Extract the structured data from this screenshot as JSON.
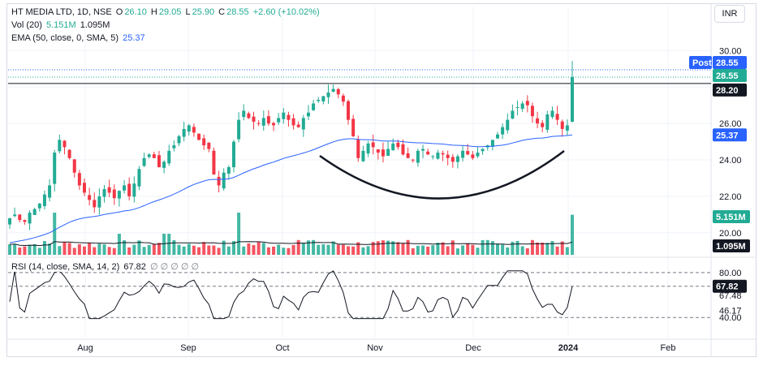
{
  "legend": {
    "symbol": "HT MEDIA LTD, 1D, NSE",
    "o_label": "O",
    "o": "26.10",
    "h_label": "H",
    "h": "29.05",
    "l_label": "L",
    "l": "25.90",
    "c_label": "C",
    "c": "28.55",
    "change": "+2.60 (+10.02%)",
    "vol_label": "Vol (20)",
    "vol_value": "5.151M",
    "vol_ma": "1.095M",
    "ema_label": "EMA (50, close, 0, SMA, 5)",
    "ema_value": "25.37",
    "rsi_label": "RSI (14, close, SMA, 14, 2)",
    "rsi_value": "67.82",
    "rsi_extra": "∅ ∅ ∅ ∅ ∅"
  },
  "currency": "INR",
  "colors": {
    "up": "#22ab94",
    "down": "#f23645",
    "ema": "#2962ff",
    "vol_up": "#22ab94",
    "vol_down": "#f23645",
    "vol_ma": "#131722",
    "grid": "#f0f3fa",
    "text": "#131722"
  },
  "chart_data": {
    "type": "candlestick",
    "symbol": "HT MEDIA LTD",
    "interval": "1D",
    "exchange": "NSE",
    "price_axis": {
      "ticks": [
        30,
        28,
        26,
        24,
        22,
        20
      ],
      "tick_labels": [
        "30.00",
        "28.00",
        "26.00",
        "24.00",
        "22.00",
        "20.00"
      ],
      "range": [
        19.5,
        31
      ]
    },
    "time_axis": {
      "labels": [
        "Aug",
        "Sep",
        "Oct",
        "Nov",
        "Dec",
        "2024",
        "Feb"
      ]
    },
    "price_labels": [
      {
        "text": "Post",
        "value": 28.55,
        "kind": "post"
      },
      {
        "text": "28.55",
        "value": 28.55,
        "kind": "last"
      },
      {
        "text": "28.20",
        "value": 28.2,
        "kind": "hline"
      },
      {
        "text": "25.37",
        "value": 25.37,
        "kind": "ema"
      }
    ],
    "volume_labels": [
      {
        "text": "5.151M",
        "kind": "volume"
      },
      {
        "text": "1.095M",
        "kind": "volume_ma"
      }
    ],
    "horizontal_line": 28.2,
    "annotations": [
      "rounding bottom arc"
    ],
    "closes": [
      20.8,
      21.0,
      20.7,
      20.6,
      21.1,
      21.3,
      21.6,
      22.1,
      22.6,
      24.4,
      25.1,
      24.7,
      24.1,
      23.3,
      22.6,
      22.2,
      21.8,
      21.4,
      22.0,
      22.4,
      22.2,
      21.9,
      22.3,
      22.6,
      22.0,
      22.7,
      23.5,
      24.1,
      24.3,
      24.1,
      23.6,
      23.9,
      24.5,
      24.8,
      25.3,
      25.7,
      25.9,
      25.5,
      25.1,
      24.8,
      24.6,
      23.2,
      22.6,
      23.3,
      23.6,
      25.0,
      26.2,
      26.7,
      26.3,
      26.1,
      26.0,
      26.3,
      26.0,
      25.9,
      26.3,
      26.6,
      26.2,
      25.9,
      25.8,
      26.3,
      26.6,
      27.1,
      27.3,
      27.5,
      27.7,
      27.9,
      27.6,
      27.2,
      26.2,
      25.3,
      24.1,
      24.5,
      24.9,
      24.7,
      24.4,
      24.2,
      24.6,
      24.9,
      24.7,
      24.3,
      24.1,
      24.0,
      24.5,
      24.6,
      24.3,
      24.2,
      24.4,
      24.3,
      24.1,
      23.9,
      24.2,
      24.5,
      24.3,
      24.1,
      24.4,
      24.6,
      24.8,
      25.1,
      25.4,
      25.8,
      26.2,
      26.7,
      26.9,
      27.1,
      27.0,
      26.4,
      26.0,
      25.8,
      26.5,
      26.7,
      26.2,
      25.7,
      25.9,
      28.55
    ],
    "ema50": [
      19.45,
      19.5,
      19.55,
      19.6,
      19.66,
      19.73,
      19.81,
      19.9,
      20.0,
      20.14,
      20.3,
      20.44,
      20.58,
      20.68,
      20.76,
      20.82,
      20.86,
      20.89,
      20.94,
      21.0,
      21.05,
      21.09,
      21.14,
      21.2,
      21.23,
      21.29,
      21.38,
      21.49,
      21.61,
      21.71,
      21.8,
      21.9,
      22.0,
      22.12,
      22.25,
      22.39,
      22.53,
      22.65,
      22.75,
      22.84,
      22.91,
      22.93,
      22.92,
      22.94,
      22.96,
      23.04,
      23.16,
      23.29,
      23.4,
      23.51,
      23.6,
      23.71,
      23.8,
      23.88,
      23.98,
      24.08,
      24.16,
      24.23,
      24.3,
      24.38,
      24.46,
      24.56,
      24.67,
      24.78,
      24.89,
      24.99,
      25.07,
      25.13,
      25.16,
      25.16,
      25.13,
      25.11,
      25.11,
      25.1,
      25.07,
      25.04,
      25.04,
      25.04,
      25.03,
      25.0,
      24.97,
      24.95,
      24.94,
      24.94,
      24.92,
      24.9,
      24.89,
      24.87,
      24.84,
      24.81,
      24.8,
      24.79,
      24.77,
      24.74,
      24.73,
      24.73,
      24.74,
      24.75,
      24.78,
      24.81,
      24.86,
      24.93,
      25.0,
      25.07,
      25.13,
      25.16,
      25.19,
      25.2,
      25.24,
      25.29,
      25.31,
      25.32,
      25.34,
      25.37
    ],
    "rsi": [
      67.82
    ]
  }
}
